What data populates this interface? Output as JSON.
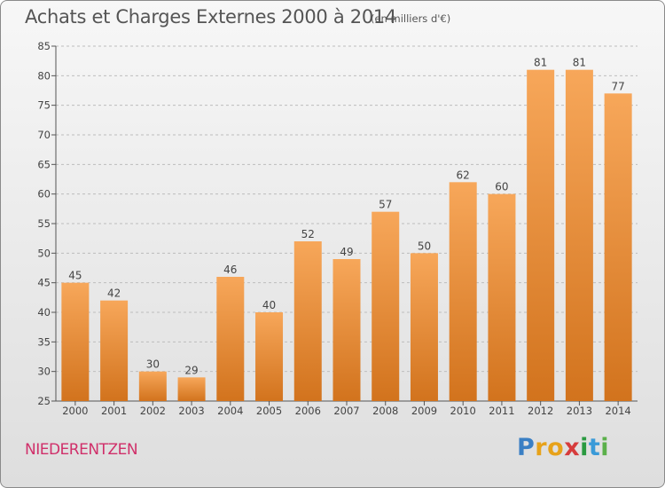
{
  "title": "Achats et Charges Externes 2000 à 2014",
  "subtitle": "(en milliers d'€)",
  "commune": "NIEDERENTZEN",
  "logo": {
    "letters": [
      "P",
      "r",
      "o",
      "x",
      "i",
      "t",
      "i"
    ],
    "colors": [
      "#3a7fc4",
      "#e7a21a",
      "#e7a21a",
      "#d63c3c",
      "#2a9a40",
      "#3a9ad8",
      "#5bb04a"
    ]
  },
  "colors": {
    "bar_light": "#f7a75a",
    "bar_dark": "#d2731d",
    "axis": "#555555",
    "grid": "#bdbdbd",
    "commune": "#d0306a"
  },
  "chart_data": {
    "type": "bar",
    "categories": [
      "2000",
      "2001",
      "2002",
      "2003",
      "2004",
      "2005",
      "2006",
      "2007",
      "2008",
      "2009",
      "2010",
      "2011",
      "2012",
      "2013",
      "2014"
    ],
    "values": [
      45,
      42,
      30,
      29,
      46,
      40,
      52,
      49,
      57,
      50,
      62,
      60,
      81,
      81,
      77
    ],
    "ylim": [
      25,
      85
    ],
    "yticks": [
      25,
      30,
      35,
      40,
      45,
      50,
      55,
      60,
      65,
      70,
      75,
      80,
      85
    ],
    "grid": true,
    "data_labels": true
  }
}
